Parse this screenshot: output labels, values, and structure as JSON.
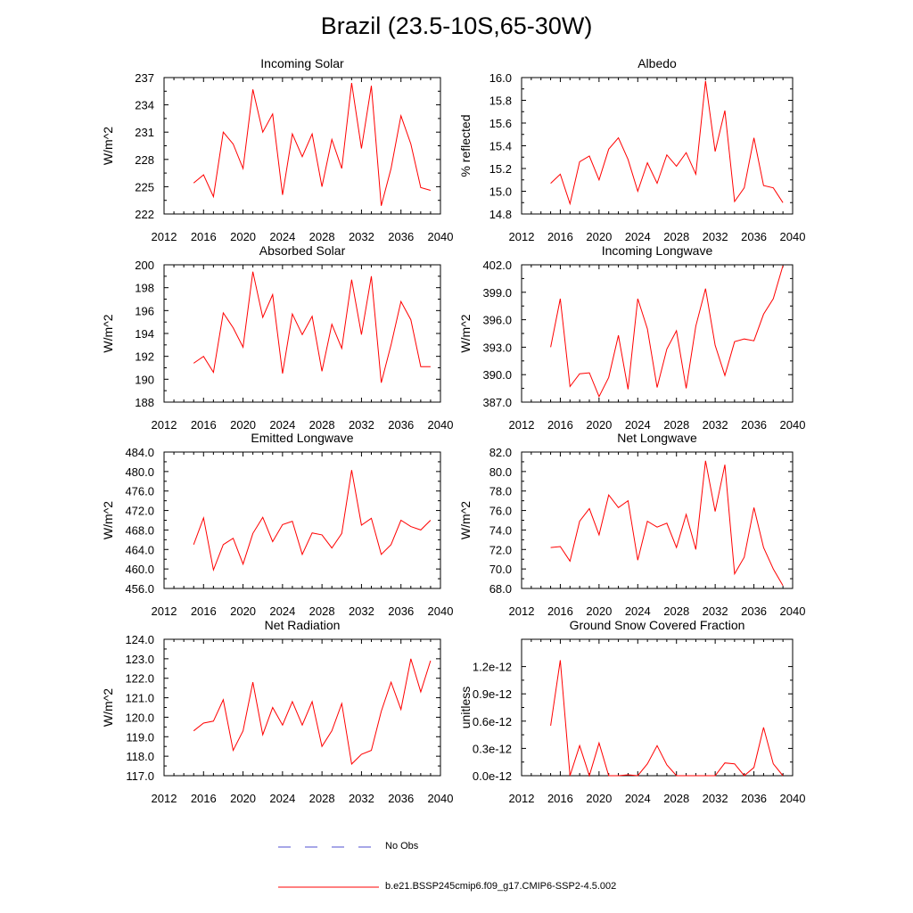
{
  "title": "Brazil (23.5-10S,65-30W)",
  "colors": {
    "model": "#ff0000",
    "obs": "#4f4fd0",
    "axis": "#000000"
  },
  "legend": {
    "obs_label": "No Obs",
    "model_label": "b.e21.BSSP245cmip6.f09_g17.CMIP6-SSP2-4.5.002"
  },
  "chart_data": [
    {
      "type": "line",
      "title": "Incoming Solar",
      "ylabel": "W/m^2",
      "xlim": [
        2012,
        2040
      ],
      "xticks": [
        2012,
        2016,
        2020,
        2024,
        2028,
        2032,
        2036,
        2040
      ],
      "ylim": [
        222,
        237
      ],
      "yticks": [
        222,
        225,
        228,
        231,
        234,
        237
      ],
      "ytick_labels": [
        "222",
        "225",
        "228",
        "231",
        "234",
        "237"
      ],
      "x": [
        2015,
        2016,
        2017,
        2018,
        2019,
        2020,
        2021,
        2022,
        2023,
        2024,
        2025,
        2026,
        2027,
        2028,
        2029,
        2030,
        2031,
        2032,
        2033,
        2034,
        2035,
        2036,
        2037,
        2038,
        2039
      ],
      "values": [
        225.4,
        226.3,
        223.9,
        231.0,
        229.7,
        227.0,
        235.7,
        231.0,
        233.0,
        224.1,
        230.8,
        228.3,
        230.8,
        225.0,
        230.2,
        227.0,
        236.4,
        229.2,
        236.1,
        222.9,
        227.0,
        232.8,
        229.7,
        224.9,
        224.6
      ]
    },
    {
      "type": "line",
      "title": "Albedo",
      "ylabel": "% reflected",
      "xlim": [
        2012,
        2040
      ],
      "xticks": [
        2012,
        2016,
        2020,
        2024,
        2028,
        2032,
        2036,
        2040
      ],
      "ylim": [
        14.8,
        16.0
      ],
      "yticks": [
        14.8,
        15.0,
        15.2,
        15.4,
        15.6,
        15.8,
        16.0
      ],
      "ytick_labels": [
        "14.8",
        "15.0",
        "15.2",
        "15.4",
        "15.6",
        "15.8",
        "16.0"
      ],
      "x": [
        2015,
        2016,
        2017,
        2018,
        2019,
        2020,
        2021,
        2022,
        2023,
        2024,
        2025,
        2026,
        2027,
        2028,
        2029,
        2030,
        2031,
        2032,
        2033,
        2034,
        2035,
        2036,
        2037,
        2038,
        2039
      ],
      "values": [
        15.07,
        15.15,
        14.89,
        15.26,
        15.31,
        15.1,
        15.37,
        15.47,
        15.28,
        15.0,
        15.25,
        15.07,
        15.32,
        15.22,
        15.34,
        15.15,
        15.97,
        15.35,
        15.71,
        14.91,
        15.03,
        15.47,
        15.05,
        15.03,
        14.9
      ]
    },
    {
      "type": "line",
      "title": "Absorbed Solar",
      "ylabel": "W/m^2",
      "xlim": [
        2012,
        2040
      ],
      "xticks": [
        2012,
        2016,
        2020,
        2024,
        2028,
        2032,
        2036,
        2040
      ],
      "ylim": [
        188,
        200
      ],
      "yticks": [
        188,
        190,
        192,
        194,
        196,
        198,
        200
      ],
      "ytick_labels": [
        "188",
        "190",
        "192",
        "194",
        "196",
        "198",
        "200"
      ],
      "x": [
        2015,
        2016,
        2017,
        2018,
        2019,
        2020,
        2021,
        2022,
        2023,
        2024,
        2025,
        2026,
        2027,
        2028,
        2029,
        2030,
        2031,
        2032,
        2033,
        2034,
        2035,
        2036,
        2037,
        2038,
        2039
      ],
      "values": [
        191.4,
        192.0,
        190.6,
        195.8,
        194.5,
        192.8,
        199.4,
        195.4,
        197.4,
        190.5,
        195.7,
        193.9,
        195.5,
        190.7,
        194.8,
        192.7,
        198.7,
        193.9,
        199.0,
        189.7,
        193.0,
        196.8,
        195.2,
        191.1,
        191.1
      ]
    },
    {
      "type": "line",
      "title": "Incoming Longwave",
      "ylabel": "W/m^2",
      "xlim": [
        2012,
        2040
      ],
      "xticks": [
        2012,
        2016,
        2020,
        2024,
        2028,
        2032,
        2036,
        2040
      ],
      "ylim": [
        387,
        402
      ],
      "yticks": [
        387,
        390,
        393,
        396,
        399,
        402
      ],
      "ytick_labels": [
        "387.0",
        "390.0",
        "393.0",
        "396.0",
        "399.0",
        "402.0"
      ],
      "x": [
        2015,
        2016,
        2017,
        2018,
        2019,
        2020,
        2021,
        2022,
        2023,
        2024,
        2025,
        2026,
        2027,
        2028,
        2029,
        2030,
        2031,
        2032,
        2033,
        2034,
        2035,
        2036,
        2037,
        2038,
        2039
      ],
      "values": [
        393.0,
        398.3,
        388.7,
        390.1,
        390.2,
        387.6,
        389.7,
        394.3,
        388.4,
        398.3,
        395.0,
        388.6,
        392.8,
        394.8,
        388.5,
        395.3,
        399.4,
        393.2,
        389.9,
        393.6,
        393.9,
        393.7,
        396.6,
        398.3,
        401.9
      ]
    },
    {
      "type": "line",
      "title": "Emitted Longwave",
      "ylabel": "W/m^2",
      "xlim": [
        2012,
        2040
      ],
      "xticks": [
        2012,
        2016,
        2020,
        2024,
        2028,
        2032,
        2036,
        2040
      ],
      "ylim": [
        456,
        484
      ],
      "yticks": [
        456,
        460,
        464,
        468,
        472,
        476,
        480,
        484
      ],
      "ytick_labels": [
        "456.0",
        "460.0",
        "464.0",
        "468.0",
        "472.0",
        "476.0",
        "480.0",
        "484.0"
      ],
      "x": [
        2015,
        2016,
        2017,
        2018,
        2019,
        2020,
        2021,
        2022,
        2023,
        2024,
        2025,
        2026,
        2027,
        2028,
        2029,
        2030,
        2031,
        2032,
        2033,
        2034,
        2035,
        2036,
        2037,
        2038,
        2039
      ],
      "values": [
        465.0,
        470.5,
        459.8,
        465.0,
        466.3,
        461.0,
        467.3,
        470.6,
        465.6,
        469.1,
        469.8,
        463.0,
        467.4,
        467.0,
        464.3,
        467.3,
        480.3,
        469.0,
        470.4,
        463.0,
        465.0,
        470.0,
        468.7,
        468.0,
        470.0
      ]
    },
    {
      "type": "line",
      "title": "Net Longwave",
      "ylabel": "W/m^2",
      "xlim": [
        2012,
        2040
      ],
      "xticks": [
        2012,
        2016,
        2020,
        2024,
        2028,
        2032,
        2036,
        2040
      ],
      "ylim": [
        68,
        82
      ],
      "yticks": [
        68,
        70,
        72,
        74,
        76,
        78,
        80,
        82
      ],
      "ytick_labels": [
        "68.0",
        "70.0",
        "72.0",
        "74.0",
        "76.0",
        "78.0",
        "80.0",
        "82.0"
      ],
      "x": [
        2015,
        2016,
        2017,
        2018,
        2019,
        2020,
        2021,
        2022,
        2023,
        2024,
        2025,
        2026,
        2027,
        2028,
        2029,
        2030,
        2031,
        2032,
        2033,
        2034,
        2035,
        2036,
        2037,
        2038,
        2039
      ],
      "values": [
        72.2,
        72.3,
        70.8,
        74.9,
        76.2,
        73.5,
        77.6,
        76.3,
        77.0,
        70.9,
        74.9,
        74.3,
        74.7,
        72.2,
        75.6,
        72.0,
        81.1,
        75.9,
        80.7,
        69.5,
        71.2,
        76.3,
        72.2,
        70.0,
        68.3
      ]
    },
    {
      "type": "line",
      "title": "Net Radiation",
      "ylabel": "W/m^2",
      "xlim": [
        2012,
        2040
      ],
      "xticks": [
        2012,
        2016,
        2020,
        2024,
        2028,
        2032,
        2036,
        2040
      ],
      "ylim": [
        117,
        124
      ],
      "yticks": [
        117,
        118,
        119,
        120,
        121,
        122,
        123,
        124
      ],
      "ytick_labels": [
        "117.0",
        "118.0",
        "119.0",
        "120.0",
        "121.0",
        "122.0",
        "123.0",
        "124.0"
      ],
      "x": [
        2015,
        2016,
        2017,
        2018,
        2019,
        2020,
        2021,
        2022,
        2023,
        2024,
        2025,
        2026,
        2027,
        2028,
        2029,
        2030,
        2031,
        2032,
        2033,
        2034,
        2035,
        2036,
        2037,
        2038,
        2039
      ],
      "values": [
        119.3,
        119.7,
        119.8,
        120.9,
        118.3,
        119.3,
        121.8,
        119.1,
        120.5,
        119.6,
        120.8,
        119.6,
        120.8,
        118.5,
        119.3,
        120.7,
        117.6,
        118.1,
        118.3,
        120.3,
        121.8,
        120.4,
        123.0,
        121.3,
        122.9
      ]
    },
    {
      "type": "line",
      "title": "Ground Snow Covered Fraction",
      "ylabel": "unitless",
      "xlim": [
        2012,
        2040
      ],
      "xticks": [
        2012,
        2016,
        2020,
        2024,
        2028,
        2032,
        2036,
        2040
      ],
      "ylim": [
        0.0,
        1.5
      ],
      "yticks": [
        0.0,
        0.3,
        0.6,
        0.9,
        1.2
      ],
      "ytick_labels": [
        "0.0e-12",
        "0.3e-12",
        "0.6e-12",
        "0.9e-12",
        "1.2e-12"
      ],
      "value_units": "1e-12",
      "x": [
        2015,
        2016,
        2017,
        2018,
        2019,
        2020,
        2021,
        2022,
        2023,
        2024,
        2025,
        2026,
        2027,
        2028,
        2029,
        2030,
        2031,
        2032,
        2033,
        2034,
        2035,
        2036,
        2037,
        2038,
        2039
      ],
      "values": [
        0.55,
        1.27,
        0.0,
        0.33,
        0.0,
        0.36,
        0.0,
        0.0,
        0.01,
        0.0,
        0.13,
        0.33,
        0.12,
        0.0,
        0.0,
        0.0,
        0.0,
        0.0,
        0.14,
        0.13,
        0.0,
        0.09,
        0.53,
        0.13,
        0.0
      ]
    }
  ]
}
